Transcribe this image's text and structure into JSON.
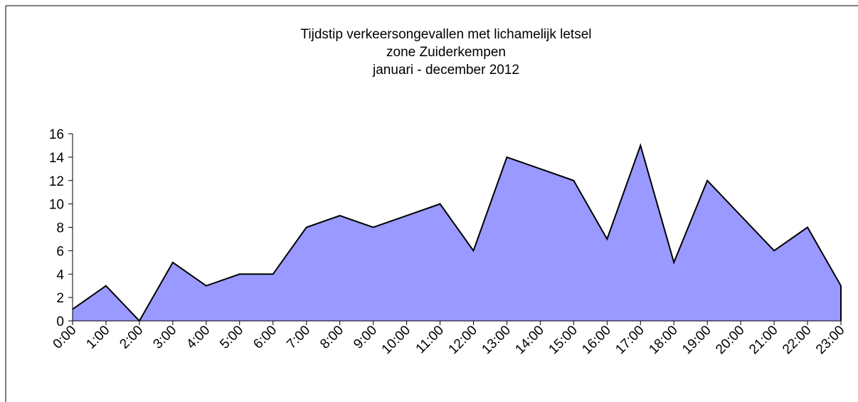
{
  "chart_data": {
    "type": "area",
    "title": [
      "Tijdstip verkeersongevallen met lichamelijk letsel",
      "zone Zuiderkempen",
      "januari - december 2012"
    ],
    "categories": [
      "0:00",
      "1:00",
      "2:00",
      "3:00",
      "4:00",
      "5:00",
      "6:00",
      "7:00",
      "8:00",
      "9:00",
      "10:00",
      "11:00",
      "12:00",
      "13:00",
      "14:00",
      "15:00",
      "16:00",
      "17:00",
      "18:00",
      "19:00",
      "20:00",
      "21:00",
      "22:00",
      "23:00"
    ],
    "values": [
      1,
      3,
      0,
      5,
      3,
      4,
      4,
      8,
      9,
      8,
      9,
      10,
      6,
      14,
      13,
      12,
      7,
      15,
      5,
      12,
      9,
      6,
      8,
      3
    ],
    "color": "#9999ff",
    "ylim": [
      0,
      16
    ],
    "yticks": [
      0,
      2,
      4,
      6,
      8,
      10,
      12,
      14,
      16
    ],
    "grid": false
  }
}
